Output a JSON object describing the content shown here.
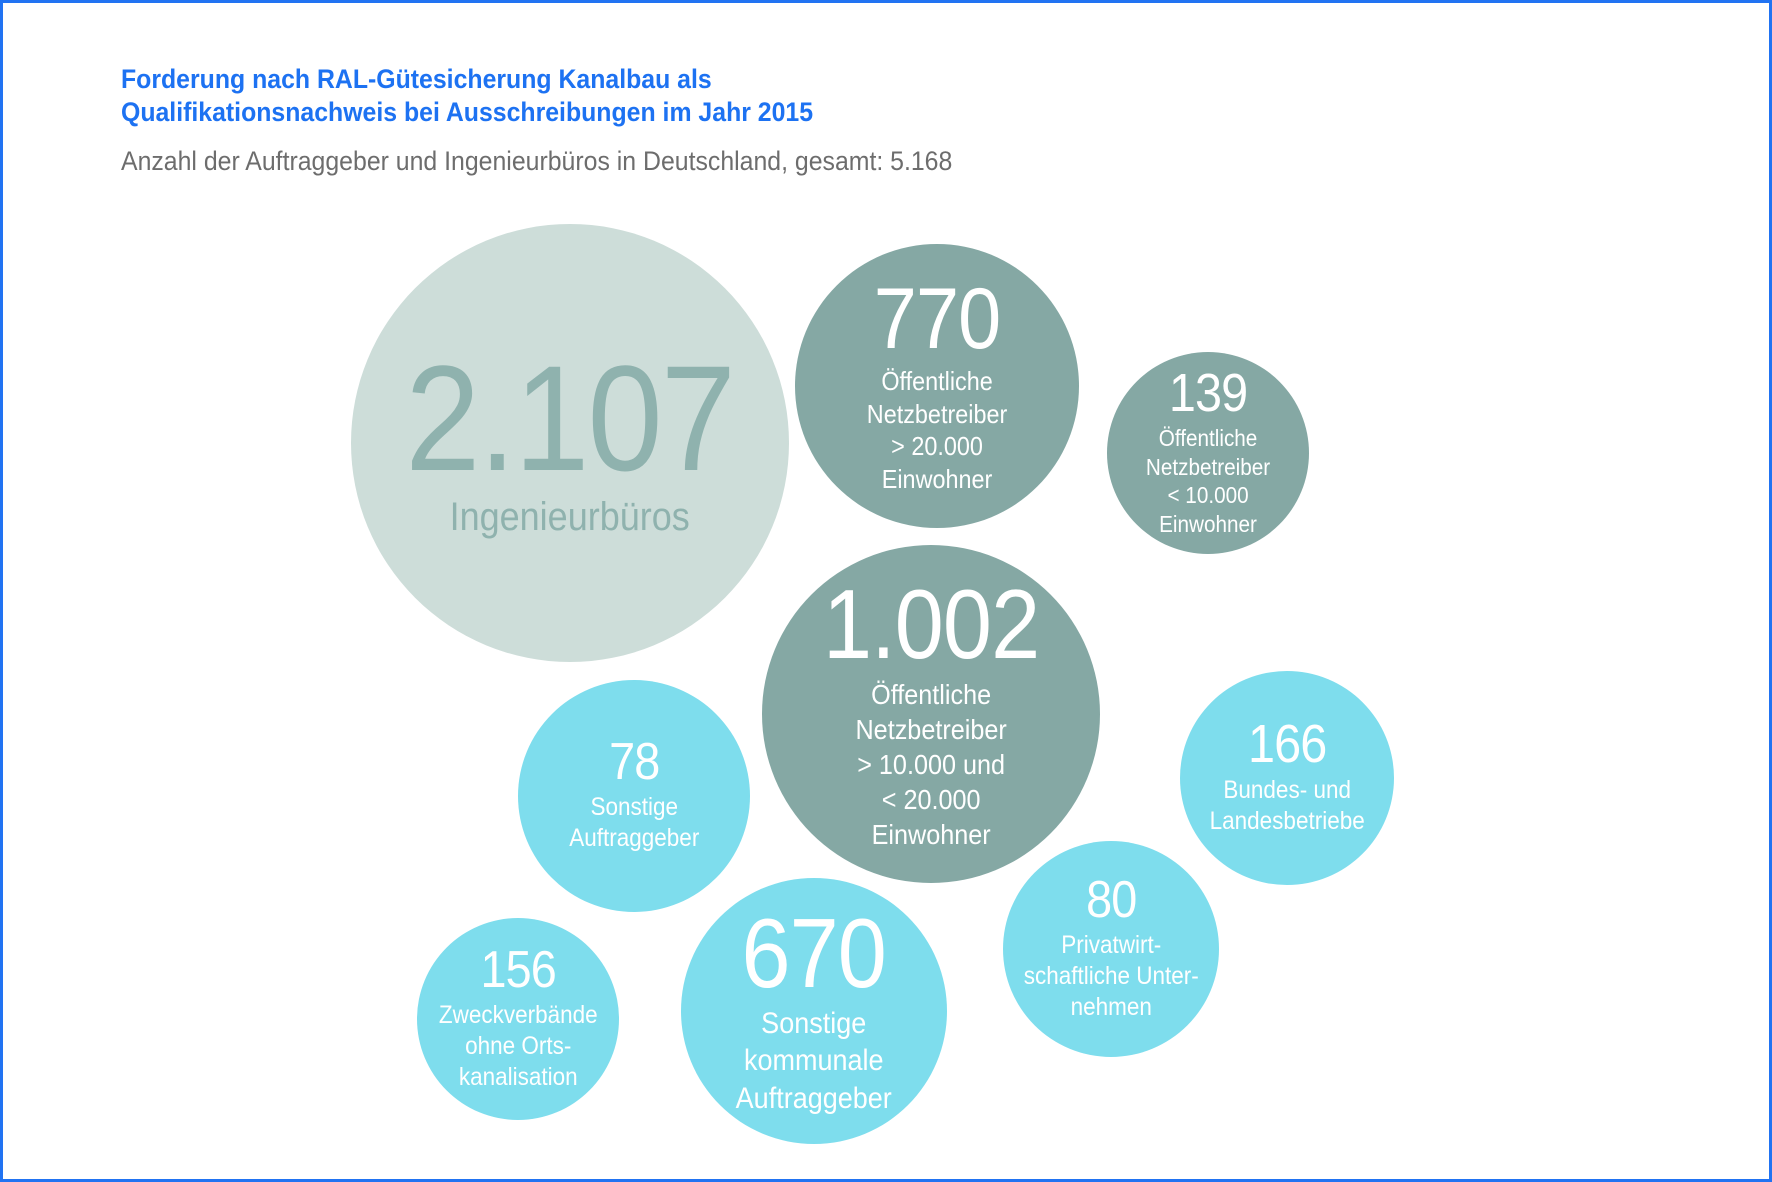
{
  "page": {
    "title_line1": "Forderung nach RAL-Gütesicherung Kanalbau als",
    "title_line2": "Qualifikationsnachweis bei Ausschreibungen im Jahr 2015",
    "subtitle": "Anzahl der Auftraggeber und Ingenieurbüros in Deutschland, gesamt: 5.168"
  },
  "colors": {
    "frame_border": "#2173f2",
    "title_blue": "#1d72f2",
    "subtitle_gray": "#6d6d6d",
    "bubble_pale_sage": "#cdddd9",
    "bubble_pale_sage_text": "#8fb2ae",
    "bubble_slate_teal": "#85a8a4",
    "bubble_light_cyan": "#7edded",
    "bubble_text_white": "#ffffff"
  },
  "bubbles": [
    {
      "display": "2.107",
      "label": "Ingenieurbüros"
    },
    {
      "display": "770",
      "label": "Öffentliche\nNetzbetreiber\n> 20.000\nEinwohner"
    },
    {
      "display": "139",
      "label": "Öffentliche\nNetzbetreiber\n< 10.000\nEinwohner"
    },
    {
      "display": "1.002",
      "label": "Öffentliche\nNetzbetreiber\n> 10.000 und\n< 20.000\nEinwohner"
    },
    {
      "display": "78",
      "label": "Sonstige\nAuftraggeber"
    },
    {
      "display": "166",
      "label": "Bundes- und\nLandesbetriebe"
    },
    {
      "display": "80",
      "label": "Privatwirt-\nschaftliche Unter-\nnehmen"
    },
    {
      "display": "670",
      "label": "Sonstige\nkommunale\nAuftraggeber"
    },
    {
      "display": "156",
      "label": "Zweckverbände\nohne Orts-\nkanalisation"
    }
  ],
  "chart_data": {
    "type": "bubble",
    "title": "Forderung nach RAL-Gütesicherung Kanalbau als Qualifikationsnachweis bei Ausschreibungen im Jahr 2015",
    "subtitle": "Anzahl der Auftraggeber und Ingenieurbüros in Deutschland, gesamt: 5.168",
    "total": 5168,
    "legend_position": "none",
    "grid": false,
    "items": [
      {
        "label": "Ingenieurbüros",
        "value": 2107,
        "color": "#cdddd9"
      },
      {
        "label": "Öffentliche Netzbetreiber > 20.000 Einwohner",
        "value": 770,
        "color": "#85a8a4"
      },
      {
        "label": "Öffentliche Netzbetreiber < 10.000 Einwohner",
        "value": 139,
        "color": "#85a8a4"
      },
      {
        "label": "Öffentliche Netzbetreiber > 10.000 und < 20.000 Einwohner",
        "value": 1002,
        "color": "#85a8a4"
      },
      {
        "label": "Sonstige Auftraggeber",
        "value": 78,
        "color": "#7edded"
      },
      {
        "label": "Bundes- und Landesbetriebe",
        "value": 166,
        "color": "#7edded"
      },
      {
        "label": "Privatwirtschaftliche Unternehmen",
        "value": 80,
        "color": "#7edded"
      },
      {
        "label": "Sonstige kommunale Auftraggeber",
        "value": 670,
        "color": "#7edded"
      },
      {
        "label": "Zweckverbände ohne Ortskanalisation",
        "value": 156,
        "color": "#7edded"
      }
    ]
  }
}
